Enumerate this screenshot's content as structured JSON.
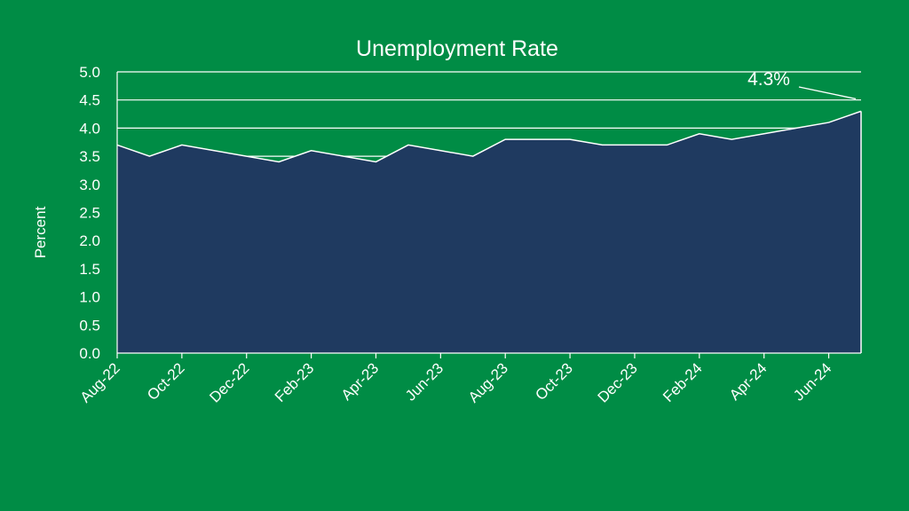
{
  "colors": {
    "background": "#008c45",
    "area_fill": "#1f3a60",
    "line": "#ffffff",
    "grid": "#ffffff",
    "text": "#ffffff"
  },
  "chart_data": {
    "type": "area",
    "title": "Unemployment Rate",
    "xlabel": "",
    "ylabel": "Percent",
    "ylim": [
      0,
      5
    ],
    "yticks": [
      "0.0",
      "0.5",
      "1.0",
      "1.5",
      "2.0",
      "2.5",
      "3.0",
      "3.5",
      "4.0",
      "4.5",
      "5.0"
    ],
    "grid": "horizontal",
    "x": [
      "2022-08",
      "2022-09",
      "2022-10",
      "2022-11",
      "2022-12",
      "2023-01",
      "2023-02",
      "2023-03",
      "2023-04",
      "2023-05",
      "2023-06",
      "2023-07",
      "2023-08",
      "2023-09",
      "2023-10",
      "2023-11",
      "2023-12",
      "2024-01",
      "2024-02",
      "2024-03",
      "2024-04",
      "2024-05",
      "2024-06",
      "2024-07"
    ],
    "xtick_labels": [
      "Aug-22",
      "Oct-22",
      "Dec-22",
      "Feb-23",
      "Apr-23",
      "Jun-23",
      "Aug-23",
      "Oct-23",
      "Dec-23",
      "Feb-24",
      "Apr-24",
      "Jun-24"
    ],
    "series": [
      {
        "values": [
          3.7,
          3.5,
          3.7,
          3.6,
          3.5,
          3.4,
          3.6,
          3.5,
          3.4,
          3.7,
          3.6,
          3.5,
          3.8,
          3.8,
          3.8,
          3.7,
          3.7,
          3.7,
          3.9,
          3.8,
          3.9,
          4.0,
          4.1,
          4.3
        ]
      }
    ],
    "annotations": [
      {
        "text": "4.3%",
        "x": "2024-07",
        "y": 4.3
      }
    ]
  }
}
